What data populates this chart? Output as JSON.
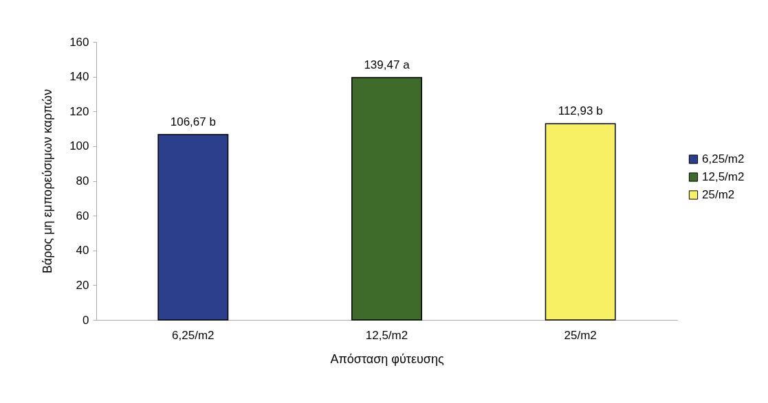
{
  "chart_data": {
    "type": "bar",
    "xlabel": "Απόσταση φύτευσης",
    "ylabel": "Βάρος μη εμπορεύσιμων καρπών",
    "categories": [
      "6,25/m2",
      "12,5/m2",
      "25/m2"
    ],
    "series": [
      {
        "name": "6,25/m2",
        "color": "#2b3f8c",
        "values": [
          106.67,
          null,
          null
        ],
        "value_labels": [
          "106,67 b",
          null,
          null
        ]
      },
      {
        "name": "12,5/m2",
        "color": "#3f6b2a",
        "values": [
          null,
          139.47,
          null
        ],
        "value_labels": [
          null,
          "139,47 a",
          null
        ]
      },
      {
        "name": "25/m2",
        "color": "#f7f064",
        "values": [
          null,
          null,
          112.93
        ],
        "value_labels": [
          null,
          null,
          "112,93 b"
        ]
      }
    ],
    "ylim": [
      0,
      160
    ],
    "yticks": [
      0,
      20,
      40,
      60,
      80,
      100,
      120,
      140,
      160
    ],
    "legend": "right"
  }
}
